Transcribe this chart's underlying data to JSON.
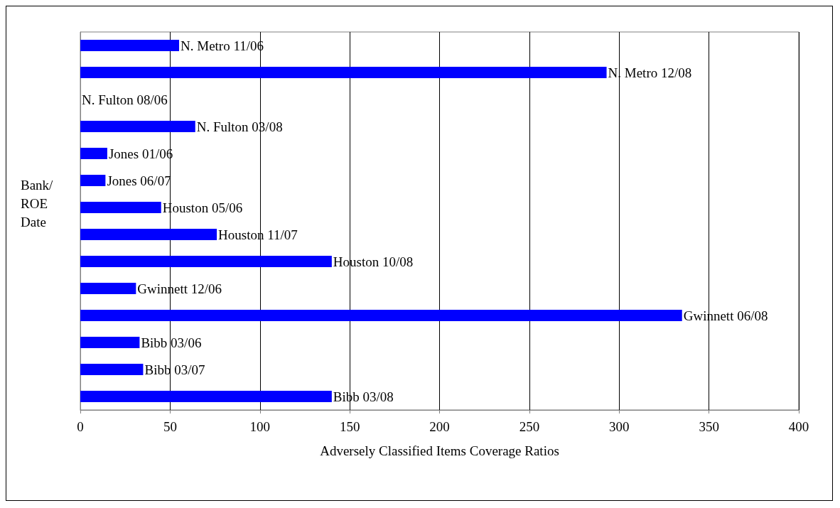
{
  "chart_data": {
    "type": "bar",
    "orientation": "horizontal",
    "xlabel": "Adversely Classified Items Coverage Ratios",
    "ylabel": "Bank/ ROE Date",
    "categories": [
      "N. Metro 11/06",
      "N. Metro 12/08",
      "N. Fulton 08/06",
      "N. Fulton 03/08",
      "Jones 01/06",
      "Jones 06/07",
      "Houston 05/06",
      "Houston 11/07",
      "Houston 10/08",
      "Gwinnett 12/06",
      "Gwinnett 06/08",
      "Bibb 03/06",
      "Bibb 03/07",
      "Bibb 03/08"
    ],
    "values": [
      55,
      293,
      0,
      64,
      15,
      14,
      45,
      76,
      140,
      31,
      335,
      33,
      35,
      140
    ],
    "color": "#0000ff",
    "xlim": [
      0,
      400
    ],
    "xticks": [
      0,
      50,
      100,
      150,
      200,
      250,
      300,
      350,
      400
    ],
    "grid": "x",
    "tick_labels": "x"
  }
}
